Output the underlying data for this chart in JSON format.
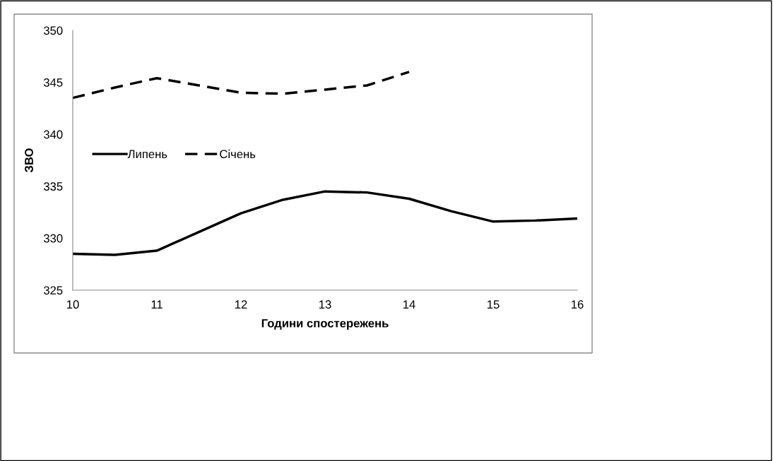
{
  "chart_data": {
    "type": "line",
    "xlabel": "Години спостережень",
    "ylabel": "ЗВО",
    "xlim": [
      10,
      16
    ],
    "xticks": [
      10,
      11,
      12,
      13,
      14,
      15,
      16
    ],
    "ylim": [
      325,
      350
    ],
    "yticks": [
      325,
      330,
      335,
      340,
      345,
      350
    ],
    "grid": false,
    "legend": "left",
    "marker": "none",
    "series": [
      {
        "name": "Липень",
        "color": "#000000",
        "line_style": "solid",
        "x": [
          10,
          10.5,
          11,
          11.5,
          12,
          12.5,
          13,
          13.5,
          14,
          14.5,
          15,
          15.5,
          16
        ],
        "values": [
          328.5,
          328.4,
          328.8,
          330.6,
          332.4,
          333.7,
          334.5,
          334.4,
          333.8,
          332.6,
          331.6,
          331.7,
          331.9
        ]
      },
      {
        "name": "Січень",
        "color": "#000000",
        "line_style": "dashed",
        "x": [
          10,
          10.5,
          11,
          11.5,
          12,
          12.5,
          13,
          13.5,
          14
        ],
        "values": [
          343.5,
          344.5,
          345.4,
          344.7,
          344.0,
          343.9,
          344.3,
          344.7,
          346.0
        ]
      }
    ]
  }
}
